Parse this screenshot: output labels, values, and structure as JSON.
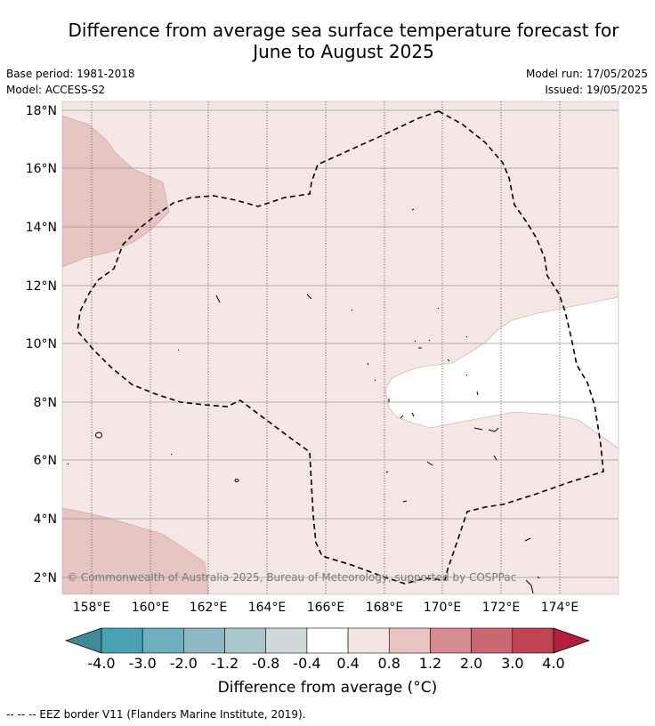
{
  "title_line1": "Difference from average sea surface temperature forecast for",
  "title_line2": "June to August 2025",
  "base_period": "Base period: 1981-2018",
  "model": "Model: ACCESS-S2",
  "model_run": "Model run: 17/05/2025",
  "issued": "Issued: 19/05/2025",
  "copyright": "© Commonwealth of Australia 2025, Bureau of Meteorology, supported by COSPPac",
  "lon_labels": [
    "158°E",
    "160°E",
    "162°E",
    "164°E",
    "166°E",
    "168°E",
    "170°E",
    "172°E",
    "174°E"
  ],
  "lat_labels": [
    "18°N",
    "16°N",
    "14°N",
    "12°N",
    "10°N",
    "8°N",
    "6°N",
    "4°N",
    "2°N"
  ],
  "colorbar": {
    "title": "Difference from average (°C)",
    "ticks": [
      "-4.0",
      "-3.0",
      "-2.0",
      "-1.2",
      "-0.8",
      "-0.4",
      "0.4",
      "0.8",
      "1.2",
      "2.0",
      "3.0",
      "4.0"
    ],
    "colors": [
      "#4aa1b3",
      "#6cb0bf",
      "#8db9c5",
      "#a9c7cb",
      "#d1d8da",
      "#ffffff",
      "#f5e6e6",
      "#e8c4c2",
      "#d98b93",
      "#cb6673",
      "#c04454"
    ],
    "under_color": "#3f8a96",
    "over_color": "#b21e3e"
  },
  "footnote": "-- -- -- EEZ border V11 (Flanders Marine Institute, 2019)."
}
